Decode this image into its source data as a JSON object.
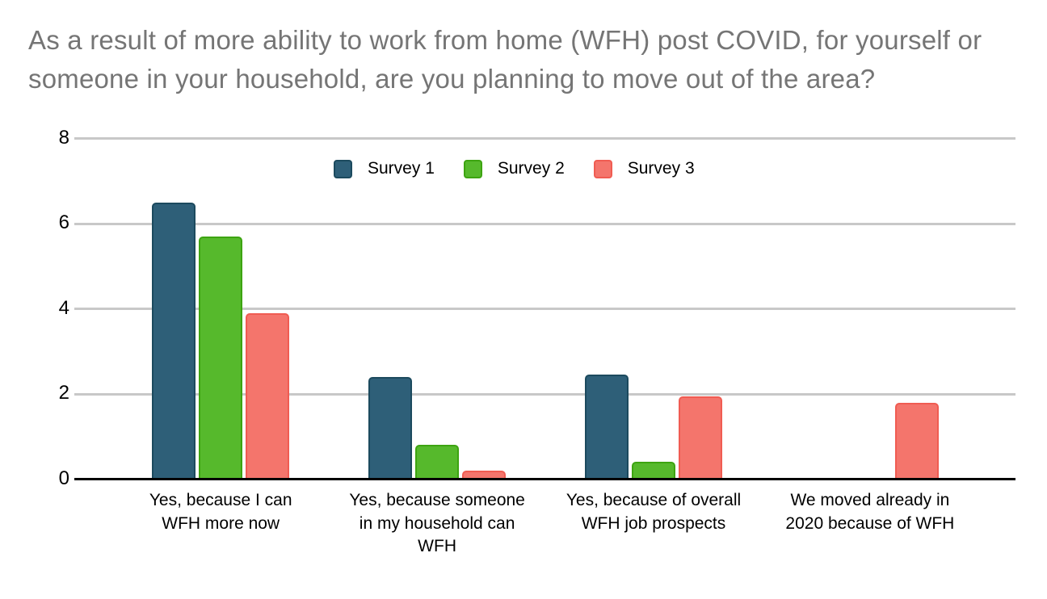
{
  "chart_data": {
    "type": "bar",
    "title": "As a result of more ability to work from home (WFH) post COVID, for yourself or someone in your household, are you planning to move out of the area?",
    "categories": [
      "Yes, because I can\nWFH more now",
      "Yes, because someone\nin my household can\nWFH",
      "Yes, because of overall\nWFH job prospects",
      "We moved already in\n2020 because of WFH"
    ],
    "series": [
      {
        "name": "Survey 1",
        "color": "#2e5f78",
        "border_color": "#1c4a5e",
        "values": [
          6.5,
          2.4,
          2.45,
          0
        ]
      },
      {
        "name": "Survey 2",
        "color": "#56b92c",
        "border_color": "#3da411",
        "values": [
          5.7,
          0.8,
          0.4,
          0
        ]
      },
      {
        "name": "Survey 3",
        "color": "#f4756c",
        "border_color": "#f05c52",
        "values": [
          3.9,
          0.2,
          1.95,
          1.8
        ]
      }
    ],
    "xlabel": "",
    "ylabel": "",
    "ylim": [
      0,
      8
    ],
    "yticks": [
      0,
      2,
      4,
      6,
      8
    ],
    "grid": true,
    "legend_position": "top"
  },
  "colors": {
    "title_text": "#757575",
    "gridline": "#c8c8c8",
    "axis_line": "#000000",
    "tick_text": "#000000",
    "legend_text": "#000000",
    "background": "#ffffff"
  }
}
